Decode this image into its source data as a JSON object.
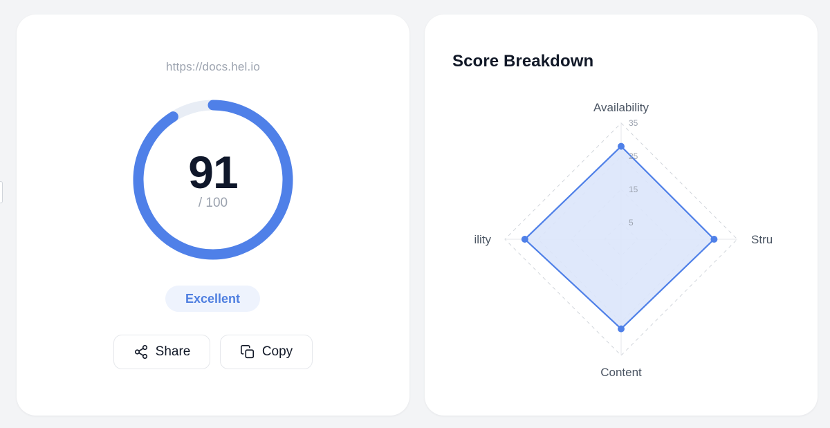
{
  "score_card": {
    "url": "https://docs.hel.io",
    "score": "91",
    "score_fraction": 0.91,
    "max_label": "/ 100",
    "rating": "Excellent",
    "accent_color": "#4f80e8",
    "track_color": "#e8edf5",
    "actions": {
      "share_label": "Share",
      "share_icon": "share-icon",
      "copy_label": "Copy",
      "copy_icon": "copy-icon"
    }
  },
  "breakdown": {
    "title": "Score Breakdown",
    "chart_data": {
      "type": "radar",
      "axes": [
        "Availability",
        "Structure",
        "Content",
        "Accessibility"
      ],
      "visible_axis_labels": [
        "Availability",
        "Stru",
        "Content",
        "ility"
      ],
      "values": [
        28,
        28,
        27,
        29
      ],
      "max": 35,
      "ticks": [
        5,
        15,
        25,
        35
      ],
      "grid": true,
      "fill_color": "#dbe6fb",
      "line_color": "#4f80e8"
    }
  }
}
